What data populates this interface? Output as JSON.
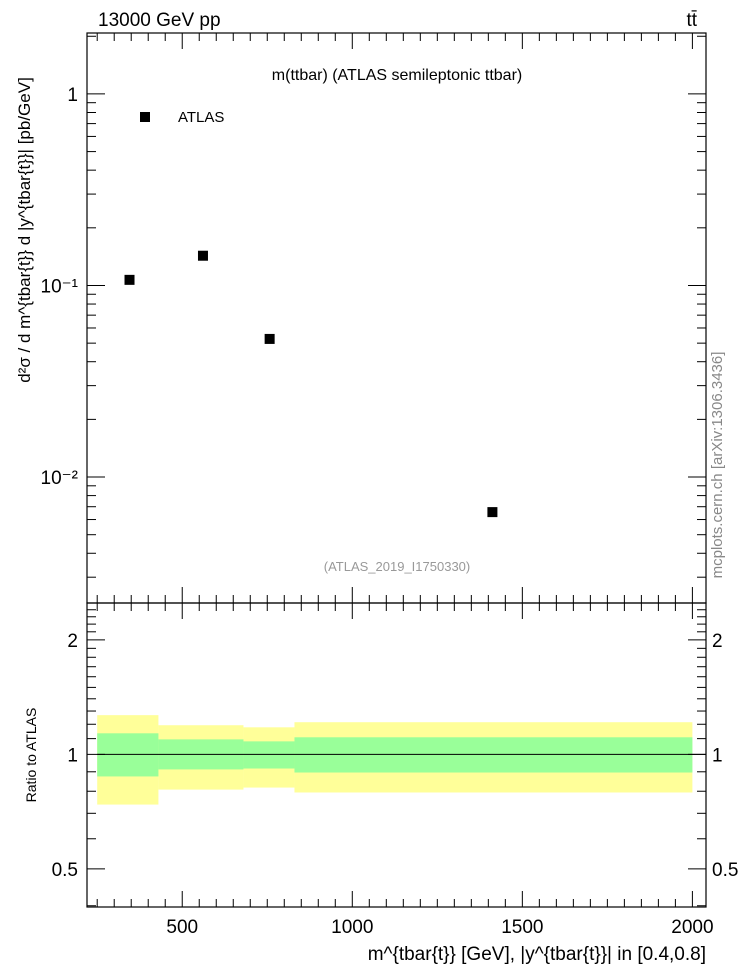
{
  "chart_data": [
    {
      "type": "scatter",
      "title": "m(ttbar) (ATLAS semileptonic ttbar)",
      "top_left_label": "13000 GeV pp",
      "top_right_label": "tt̄",
      "side_label": "mcplots.cern.ch [arXiv:1306.3436]",
      "analysis_label": "(ATLAS_2019_I1750330)",
      "ylabel": "d²σ / d m^{tbar{t}} d |y^{tbar{t}}| [pb/GeV]",
      "yscale": "log",
      "xlim": [
        220,
        2040
      ],
      "ylim": [
        0.0022,
        2.08
      ],
      "y_ticks": [
        {
          "value": 1,
          "label": "1"
        },
        {
          "value": 0.1,
          "label": "10⁻¹"
        },
        {
          "value": 0.01,
          "label": "10⁻²"
        }
      ],
      "legend": {
        "placement": "top-left",
        "entries": [
          "ATLAS"
        ]
      },
      "series": [
        {
          "name": "ATLAS",
          "x": [
            345,
            561,
            757,
            1412
          ],
          "y": [
            0.107,
            0.143,
            0.0526,
            0.00656
          ]
        }
      ]
    },
    {
      "type": "area",
      "ylabel": "Ratio to ATLAS",
      "xlabel": "m^{tbar{t}} [GeV], |y^{tbar{t}}| in [0.4,0.8]",
      "yscale": "log",
      "xlim": [
        220,
        2040
      ],
      "ylim": [
        0.397,
        2.5
      ],
      "x_ticks": [
        500,
        1000,
        1500,
        2000
      ],
      "y_ticks": [
        {
          "value": 2,
          "label": "2"
        },
        {
          "value": 1,
          "label": "1"
        },
        {
          "value": 0.5,
          "label": "0.5"
        }
      ],
      "bin_edges": [
        250,
        430,
        680,
        830,
        2000
      ],
      "bands": {
        "yellow": {
          "color": "#ffff99",
          "low": [
            0.738,
            0.808,
            0.818,
            0.794
          ],
          "high": [
            1.268,
            1.193,
            1.178,
            1.215
          ]
        },
        "green": {
          "color": "#99ff99",
          "low": [
            0.875,
            0.913,
            0.918,
            0.896
          ],
          "high": [
            1.136,
            1.095,
            1.082,
            1.109
          ]
        }
      }
    }
  ]
}
